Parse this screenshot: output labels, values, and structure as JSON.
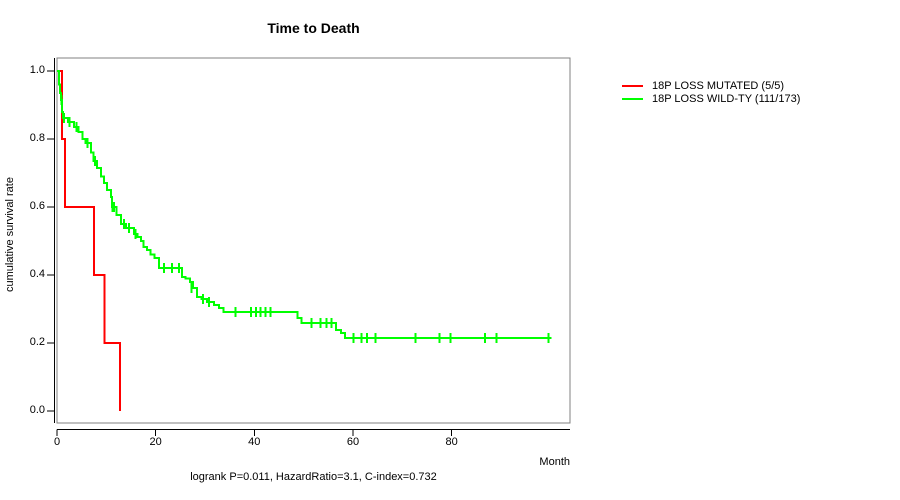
{
  "title": "Time to Death",
  "subtitle": "logrank P=0.011, HazardRatio=3.1, C-index=0.732",
  "x_axis": {
    "label": "Month",
    "ticks": [
      "0",
      "20",
      "40",
      "60",
      "80"
    ]
  },
  "y_axis": {
    "label": "cumulative survival rate",
    "ticks": [
      "1.0",
      "0.8",
      "0.6",
      "0.4",
      "0.2",
      "0.0"
    ]
  },
  "legend": [
    {
      "label": "18P LOSS MUTATED (5/5)",
      "color": "#ff0000"
    },
    {
      "label": "18P LOSS WILD-TY (111/173)",
      "color": "#00ff00"
    }
  ],
  "colors": {
    "mutated": "#ff0000",
    "wildtype": "#00ff00",
    "box": "#808080",
    "axis": "#000000"
  },
  "chart_data": {
    "type": "line",
    "subtype": "kaplan-meier-step",
    "title": "Time to Death",
    "xlabel": "Month",
    "ylabel": "cumulative survival rate",
    "xlim": [
      0,
      104
    ],
    "ylim": [
      0.0,
      1.0
    ],
    "x_ticks": [
      0,
      20,
      40,
      60,
      80
    ],
    "y_ticks": [
      1.0,
      0.8,
      0.6,
      0.4,
      0.2,
      0.0
    ],
    "annotation": "logrank P=0.011, HazardRatio=3.1, C-index=0.732",
    "legend_position": "right",
    "grid": false,
    "series": [
      {
        "name": "18P LOSS MUTATED (5/5)",
        "color": "#ff0000",
        "end_month": 12.8,
        "steps": [
          [
            0,
            1.0
          ],
          [
            1.0,
            0.8
          ],
          [
            1.6,
            0.6
          ],
          [
            7.5,
            0.4
          ],
          [
            9.6,
            0.2
          ],
          [
            12.8,
            0.0
          ]
        ],
        "censors": []
      },
      {
        "name": "18P LOSS WILD-TY (111/173)",
        "color": "#00ff00",
        "end_month": 100.3,
        "steps": [
          [
            0,
            1.0
          ],
          [
            0.4,
            0.96
          ],
          [
            0.6,
            0.935
          ],
          [
            0.8,
            0.915
          ],
          [
            1.0,
            0.88
          ],
          [
            1.2,
            0.862
          ],
          [
            2.2,
            0.85
          ],
          [
            3.4,
            0.835
          ],
          [
            4.4,
            0.82
          ],
          [
            5.2,
            0.8
          ],
          [
            5.8,
            0.788
          ],
          [
            6.9,
            0.76
          ],
          [
            7.4,
            0.735
          ],
          [
            8.1,
            0.715
          ],
          [
            8.9,
            0.69
          ],
          [
            9.5,
            0.67
          ],
          [
            10.1,
            0.65
          ],
          [
            10.9,
            0.63
          ],
          [
            11.2,
            0.6
          ],
          [
            12.1,
            0.576
          ],
          [
            13.0,
            0.55
          ],
          [
            14.0,
            0.538
          ],
          [
            15.6,
            0.52
          ],
          [
            16.3,
            0.512
          ],
          [
            17.0,
            0.5
          ],
          [
            17.5,
            0.482
          ],
          [
            18.2,
            0.474
          ],
          [
            19.0,
            0.46
          ],
          [
            19.8,
            0.45
          ],
          [
            20.7,
            0.42
          ],
          [
            25.3,
            0.394
          ],
          [
            26.1,
            0.39
          ],
          [
            27.0,
            0.38
          ],
          [
            27.6,
            0.362
          ],
          [
            28.4,
            0.335
          ],
          [
            29.3,
            0.33
          ],
          [
            30.4,
            0.321
          ],
          [
            31.8,
            0.312
          ],
          [
            32.8,
            0.303
          ],
          [
            33.8,
            0.291
          ],
          [
            48.8,
            0.274
          ],
          [
            49.6,
            0.259
          ],
          [
            56.6,
            0.238
          ],
          [
            57.6,
            0.229
          ],
          [
            58.4,
            0.215
          ]
        ],
        "censors": [
          [
            0.9,
            0.915
          ],
          [
            1.4,
            0.862
          ],
          [
            2.5,
            0.85
          ],
          [
            4.0,
            0.835
          ],
          [
            6.2,
            0.788
          ],
          [
            7.7,
            0.735
          ],
          [
            11.3,
            0.6
          ],
          [
            11.6,
            0.6
          ],
          [
            13.6,
            0.55
          ],
          [
            14.6,
            0.538
          ],
          [
            15.9,
            0.52
          ],
          [
            21.7,
            0.42
          ],
          [
            23.3,
            0.42
          ],
          [
            24.7,
            0.42
          ],
          [
            27.3,
            0.362
          ],
          [
            29.6,
            0.33
          ],
          [
            30.8,
            0.321
          ],
          [
            36.2,
            0.291
          ],
          [
            39.3,
            0.291
          ],
          [
            40.3,
            0.291
          ],
          [
            41.3,
            0.291
          ],
          [
            42.3,
            0.291
          ],
          [
            43.3,
            0.291
          ],
          [
            51.6,
            0.259
          ],
          [
            53.4,
            0.259
          ],
          [
            54.6,
            0.259
          ],
          [
            55.6,
            0.259
          ],
          [
            60.1,
            0.215
          ],
          [
            61.7,
            0.215
          ],
          [
            62.8,
            0.215
          ],
          [
            64.6,
            0.215
          ],
          [
            72.7,
            0.215
          ],
          [
            77.5,
            0.215
          ],
          [
            79.8,
            0.215
          ],
          [
            86.8,
            0.215
          ],
          [
            89.1,
            0.215
          ],
          [
            99.6,
            0.215
          ]
        ]
      }
    ]
  }
}
